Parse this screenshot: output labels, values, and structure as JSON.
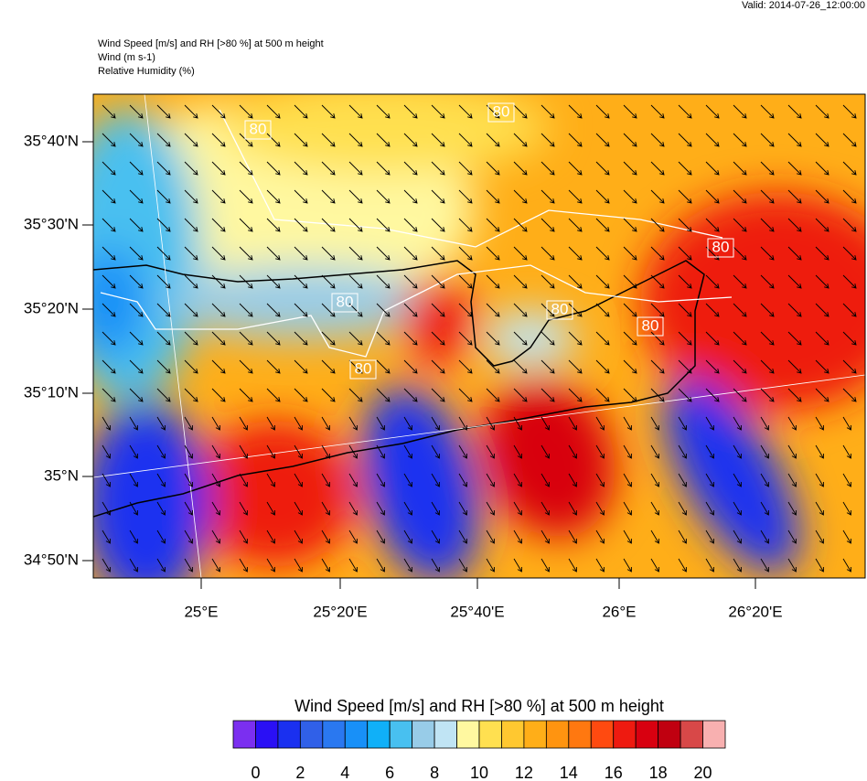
{
  "header": {
    "valid": "Valid: 2014-07-26_12:00:00"
  },
  "titles": [
    "Wind Speed [m/s] and RH [>80 %] at 500 m height",
    "Wind   (m s-1)",
    "Relative Humidity   (%)"
  ],
  "map": {
    "lat_labels": [
      "35°40'N",
      "35°30'N",
      "35°20'N",
      "35°10'N",
      "35°N",
      "34°50'N"
    ],
    "lon_labels": [
      "25°E",
      "25°20'E",
      "25°40'E",
      "26°E",
      "26°20'E"
    ],
    "contour_labels": [
      "80",
      "80",
      "80",
      "80",
      "80",
      "80",
      "80"
    ]
  },
  "colorbar": {
    "title": "Wind Speed [m/s] and RH [>80 %] at 500 m height",
    "ticks": [
      0,
      2,
      4,
      6,
      8,
      10,
      12,
      14,
      16,
      18,
      20
    ],
    "colors": [
      "#7b2ff0",
      "#2a10f5",
      "#1a30f0",
      "#3060e8",
      "#2a78f0",
      "#1890f8",
      "#10b0f8",
      "#48c0f0",
      "#98cce8",
      "#c0e4f4",
      "#fff8a0",
      "#ffe050",
      "#ffc830",
      "#ffae18",
      "#ff9410",
      "#ff7810",
      "#ff4a10",
      "#ee1a10",
      "#d80010",
      "#c00010",
      "#d84848",
      "#f8b0b0"
    ]
  }
}
